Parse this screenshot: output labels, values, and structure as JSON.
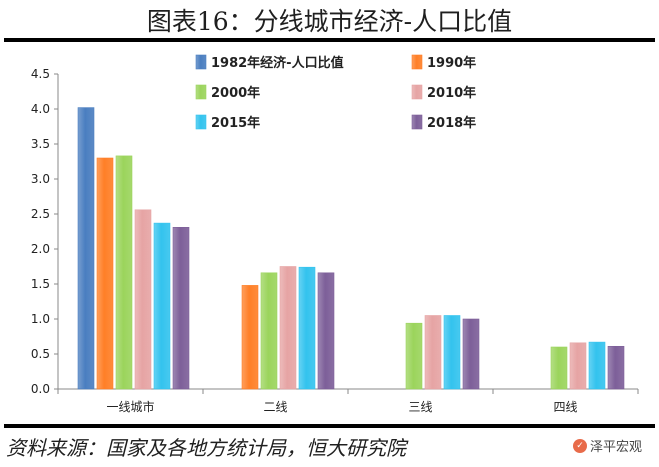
{
  "page": {
    "title": "图表16：分线城市经济-人口比值",
    "source": "资料来源：国家及各地方统计局，恒大研究院",
    "watermark": "泽平宏观",
    "watermark_icon": "wechat-icon"
  },
  "chart_data": {
    "type": "bar",
    "title": "",
    "xlabel": "",
    "ylabel": "",
    "ylim": [
      0,
      4.5
    ],
    "yticks": [
      "0.0",
      "0.5",
      "1.0",
      "1.5",
      "2.0",
      "2.5",
      "3.0",
      "3.5",
      "4.0",
      "4.5"
    ],
    "grid": false,
    "legend_placement": "top",
    "categories": [
      "一线城市",
      "二线",
      "三线",
      "四线"
    ],
    "series": [
      {
        "name": "1982年经济-人口比值",
        "color": "#4a7ec0",
        "values": [
          4.02,
          null,
          null,
          null
        ]
      },
      {
        "name": "1990年",
        "color": "#ff7f27",
        "values": [
          3.3,
          1.48,
          null,
          null
        ]
      },
      {
        "name": "2000年",
        "color": "#9bd45c",
        "values": [
          3.33,
          1.66,
          0.94,
          0.6
        ]
      },
      {
        "name": "2010年",
        "color": "#e6a4a4",
        "values": [
          2.56,
          1.75,
          1.05,
          0.66
        ]
      },
      {
        "name": "2015年",
        "color": "#33c3ee",
        "values": [
          2.37,
          1.74,
          1.05,
          0.67
        ]
      },
      {
        "name": "2018年",
        "color": "#7d5f99",
        "values": [
          2.31,
          1.66,
          1.0,
          0.61
        ]
      }
    ]
  }
}
